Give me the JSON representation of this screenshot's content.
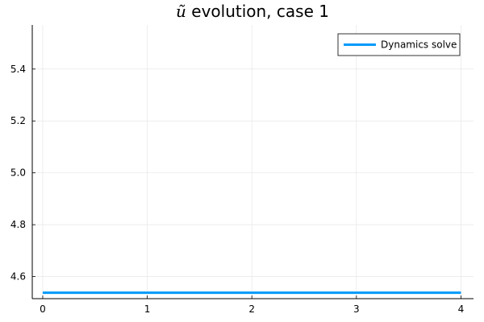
{
  "chart_data": {
    "type": "line",
    "title": {
      "symbol": "ũ",
      "text": " evolution, case 1"
    },
    "xlabel": "",
    "ylabel": "",
    "xlim": [
      -0.1,
      4.12
    ],
    "ylim": [
      4.515,
      5.57
    ],
    "xticks": [
      0,
      1,
      2,
      3,
      4
    ],
    "xtick_labels": [
      "0",
      "1",
      "2",
      "3",
      "4"
    ],
    "yticks": [
      4.6,
      4.8,
      5.0,
      5.2,
      5.4
    ],
    "ytick_labels": [
      "4.6",
      "4.8",
      "5.0",
      "5.2",
      "5.4"
    ],
    "grid": true,
    "legend_position": "top-right",
    "series": [
      {
        "name": "Dynamics solve",
        "color": "#009af9",
        "x": [
          0,
          1,
          2,
          3,
          4
        ],
        "y": [
          4.538,
          4.538,
          4.538,
          4.538,
          4.538
        ]
      }
    ]
  }
}
